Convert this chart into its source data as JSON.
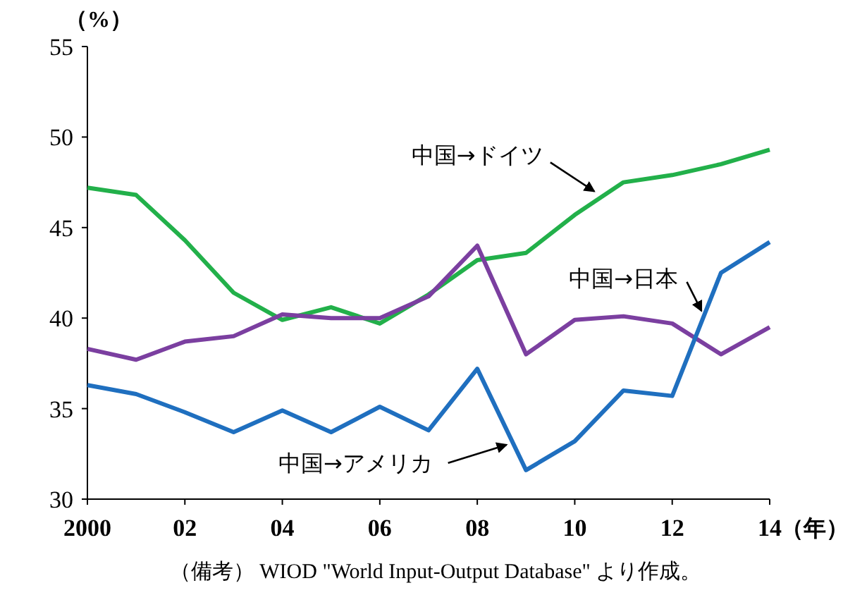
{
  "chart_data": {
    "type": "line",
    "ylabel": "（%）",
    "xlabel": "（年）",
    "annotations": [
      "（備考） WIOD \"World Input-Output Database\" より作成。"
    ],
    "x": [
      2000,
      2001,
      2002,
      2003,
      2004,
      2005,
      2006,
      2007,
      2008,
      2009,
      2010,
      2011,
      2012,
      2013,
      2014
    ],
    "xlim": [
      2000,
      2014
    ],
    "xticks": [
      {
        "value": 2000,
        "label": "2000"
      },
      {
        "value": 2002,
        "label": "02"
      },
      {
        "value": 2004,
        "label": "04"
      },
      {
        "value": 2006,
        "label": "06"
      },
      {
        "value": 2008,
        "label": "08"
      },
      {
        "value": 2010,
        "label": "10"
      },
      {
        "value": 2012,
        "label": "12"
      },
      {
        "value": 2014,
        "label": "14"
      }
    ],
    "ylim": [
      30,
      55
    ],
    "yticks": [
      30,
      35,
      40,
      45,
      50,
      55
    ],
    "grid": false,
    "legend": false,
    "marker": "none",
    "line_style": "solid",
    "series": [
      {
        "name": "中国→ドイツ",
        "color": "#22b04a",
        "values": [
          47.2,
          46.8,
          44.3,
          41.4,
          39.9,
          40.6,
          39.7,
          41.3,
          43.2,
          43.6,
          45.7,
          47.5,
          47.9,
          48.5,
          49.3
        ]
      },
      {
        "name": "中国→日本",
        "color": "#7b3fa0",
        "values": [
          38.3,
          37.7,
          38.7,
          39.0,
          40.2,
          40.0,
          40.0,
          41.2,
          44.0,
          38.0,
          39.9,
          40.1,
          39.7,
          38.0,
          39.5
        ]
      },
      {
        "name": "中国→アメリカ",
        "color": "#1f6fbf",
        "values": [
          36.3,
          35.8,
          34.8,
          33.7,
          34.9,
          33.7,
          35.1,
          33.8,
          37.2,
          31.6,
          33.2,
          36.0,
          35.7,
          42.5,
          44.2
        ]
      }
    ]
  }
}
